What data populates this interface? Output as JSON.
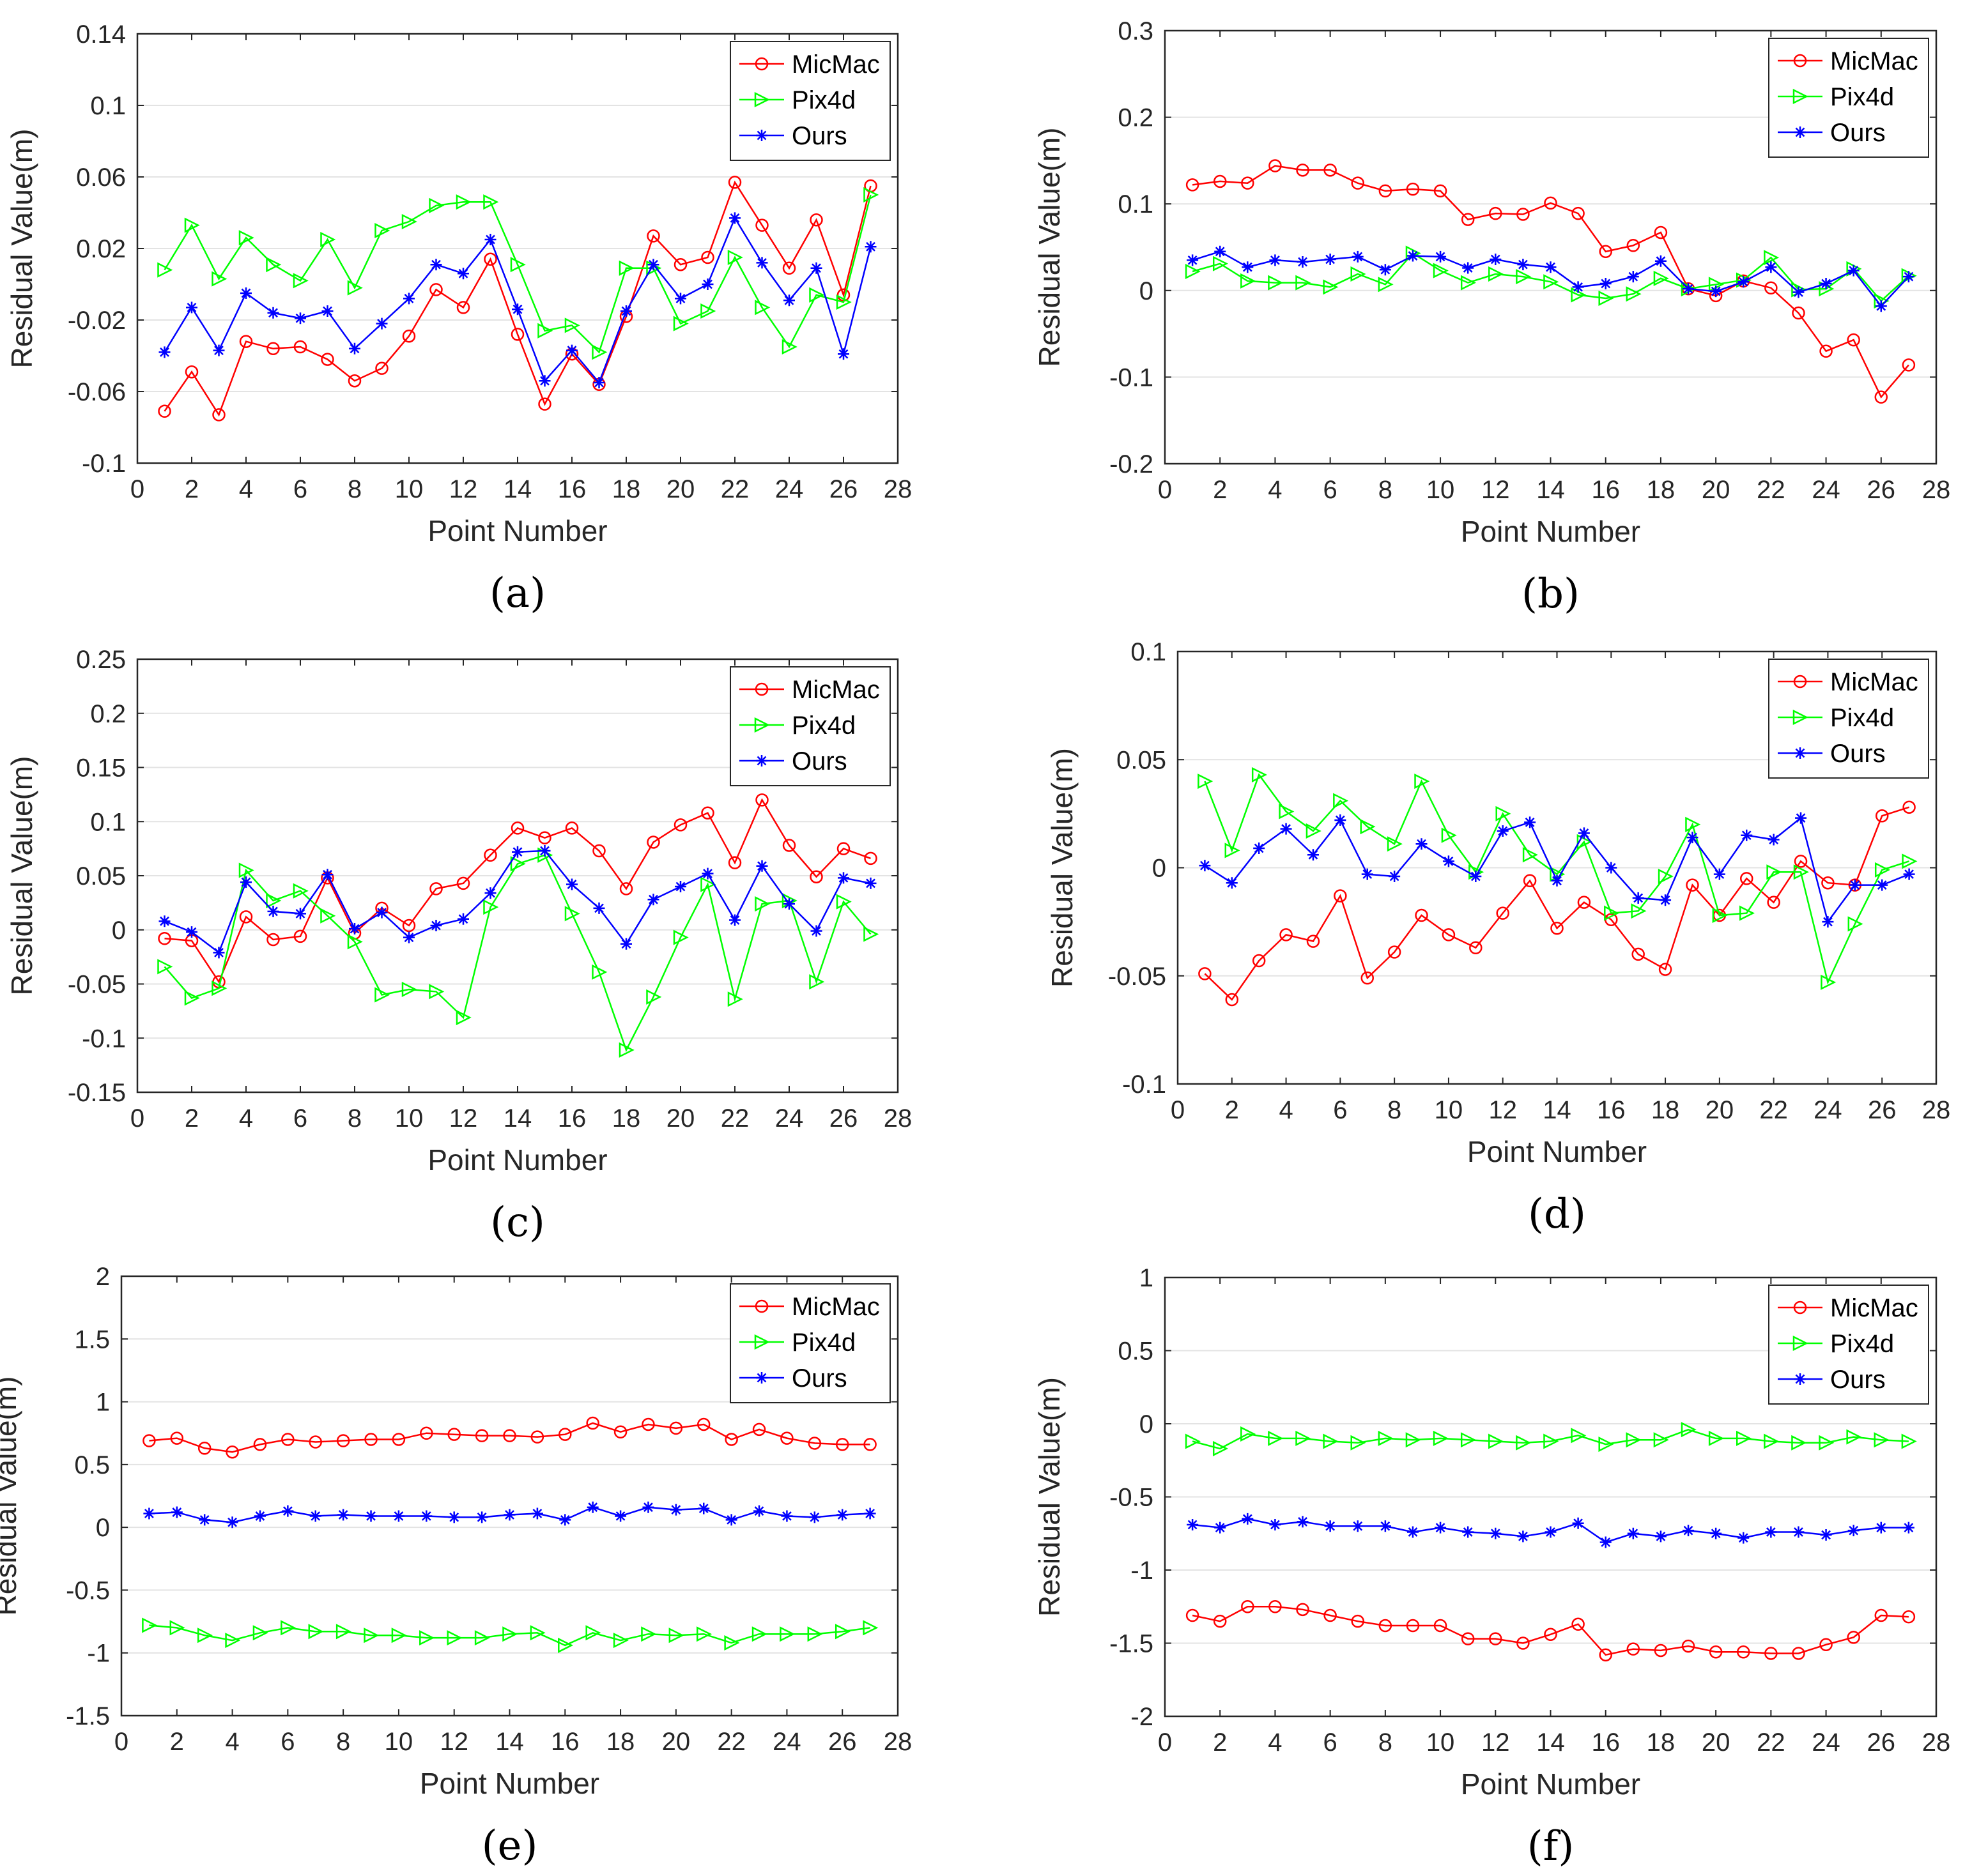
{
  "chart_data": [
    {
      "type": "line",
      "panel_label": "(a)",
      "xlabel": "Point Number",
      "ylabel": "Residual Value(m)",
      "xlim": [
        0,
        28
      ],
      "ylim": [
        -0.1,
        0.14
      ],
      "xticks": [
        0,
        2,
        4,
        6,
        8,
        10,
        12,
        14,
        16,
        18,
        20,
        22,
        24,
        26,
        28
      ],
      "yticks": [
        -0.1,
        -0.06,
        -0.02,
        0.02,
        0.06,
        0.1,
        0.14
      ],
      "ytick_labels": [
        "-0.1",
        "-0.06",
        "-0.02",
        "0.02",
        "0.06",
        "0.1",
        "0.14"
      ],
      "legend_position": "top-right",
      "x": [
        1,
        2,
        3,
        4,
        5,
        6,
        7,
        8,
        9,
        10,
        11,
        12,
        13,
        14,
        15,
        16,
        17,
        18,
        19,
        20,
        21,
        22,
        23,
        24,
        25,
        26,
        27
      ],
      "series": [
        {
          "name": "MicMac",
          "color": "#ff0000",
          "marker": "circle",
          "values": [
            -0.071,
            -0.049,
            -0.073,
            -0.032,
            -0.036,
            -0.035,
            -0.042,
            -0.054,
            -0.047,
            -0.029,
            -0.003,
            -0.013,
            0.014,
            -0.028,
            -0.067,
            -0.039,
            -0.056,
            -0.018,
            0.027,
            0.011,
            0.015,
            0.057,
            0.033,
            0.009,
            0.036,
            -0.006,
            0.055
          ]
        },
        {
          "name": "Pix4d",
          "color": "#00ff00",
          "marker": "triangle-right",
          "values": [
            0.008,
            0.033,
            0.003,
            0.026,
            0.011,
            0.002,
            0.025,
            -0.002,
            0.03,
            0.035,
            0.044,
            0.046,
            0.046,
            0.011,
            -0.026,
            -0.023,
            -0.038,
            0.009,
            0.009,
            -0.022,
            -0.015,
            0.015,
            -0.013,
            -0.035,
            -0.006,
            -0.01,
            0.05
          ]
        },
        {
          "name": "Ours",
          "color": "#0000ff",
          "marker": "asterisk",
          "values": [
            -0.038,
            -0.013,
            -0.037,
            -0.005,
            -0.016,
            -0.019,
            -0.015,
            -0.036,
            -0.022,
            -0.008,
            0.011,
            0.006,
            0.025,
            -0.014,
            -0.054,
            -0.037,
            -0.055,
            -0.015,
            0.011,
            -0.008,
            0.0,
            0.037,
            0.012,
            -0.009,
            0.009,
            -0.039,
            0.021
          ]
        }
      ]
    },
    {
      "type": "line",
      "panel_label": "(b)",
      "xlabel": "Point Number",
      "ylabel": "Residual Value(m)",
      "xlim": [
        0,
        28
      ],
      "ylim": [
        -0.2,
        0.3
      ],
      "xticks": [
        0,
        2,
        4,
        6,
        8,
        10,
        12,
        14,
        16,
        18,
        20,
        22,
        24,
        26,
        28
      ],
      "yticks": [
        -0.2,
        -0.1,
        0,
        0.1,
        0.2,
        0.3
      ],
      "ytick_labels": [
        "-0.2",
        "-0.1",
        "0",
        "0.1",
        "0.2",
        "0.3"
      ],
      "legend_position": "top-right",
      "x": [
        1,
        2,
        3,
        4,
        5,
        6,
        7,
        8,
        9,
        10,
        11,
        12,
        13,
        14,
        15,
        16,
        17,
        18,
        19,
        20,
        21,
        22,
        23,
        24,
        25,
        26,
        27
      ],
      "series": [
        {
          "name": "MicMac",
          "color": "#ff0000",
          "marker": "circle",
          "values": [
            0.122,
            0.126,
            0.124,
            0.144,
            0.139,
            0.139,
            0.124,
            0.115,
            0.117,
            0.115,
            0.082,
            0.089,
            0.088,
            0.101,
            0.089,
            0.045,
            0.052,
            0.067,
            0.002,
            -0.006,
            0.011,
            0.003,
            -0.026,
            -0.07,
            -0.057,
            -0.123,
            -0.086
          ]
        },
        {
          "name": "Pix4d",
          "color": "#00ff00",
          "marker": "triangle-right",
          "values": [
            0.022,
            0.031,
            0.011,
            0.009,
            0.009,
            0.004,
            0.019,
            0.007,
            0.043,
            0.023,
            0.009,
            0.019,
            0.016,
            0.01,
            -0.005,
            -0.009,
            -0.004,
            0.014,
            0.002,
            0.007,
            0.012,
            0.038,
            0.001,
            0.002,
            0.025,
            -0.012,
            0.017
          ]
        },
        {
          "name": "Ours",
          "color": "#0000ff",
          "marker": "asterisk",
          "values": [
            0.035,
            0.045,
            0.027,
            0.035,
            0.033,
            0.036,
            0.039,
            0.024,
            0.04,
            0.039,
            0.026,
            0.036,
            0.03,
            0.027,
            0.004,
            0.008,
            0.016,
            0.034,
            0.002,
            -0.001,
            0.01,
            0.027,
            -0.002,
            0.008,
            0.023,
            -0.018,
            0.016
          ]
        }
      ]
    },
    {
      "type": "line",
      "panel_label": "(c)",
      "xlabel": "Point Number",
      "ylabel": "Residual Value(m)",
      "xlim": [
        0,
        28
      ],
      "ylim": [
        -0.15,
        0.25
      ],
      "xticks": [
        0,
        2,
        4,
        6,
        8,
        10,
        12,
        14,
        16,
        18,
        20,
        22,
        24,
        26,
        28
      ],
      "yticks": [
        -0.15,
        -0.1,
        -0.05,
        0,
        0.05,
        0.1,
        0.15,
        0.2,
        0.25
      ],
      "ytick_labels": [
        "-0.15",
        "-0.1",
        "-0.05",
        "0",
        "0.05",
        "0.1",
        "0.15",
        "0.2",
        "0.25"
      ],
      "legend_position": "top-right",
      "x": [
        1,
        2,
        3,
        4,
        5,
        6,
        7,
        8,
        9,
        10,
        11,
        12,
        13,
        14,
        15,
        16,
        17,
        18,
        19,
        20,
        21,
        22,
        23,
        24,
        25,
        26,
        27
      ],
      "series": [
        {
          "name": "MicMac",
          "color": "#ff0000",
          "marker": "circle",
          "values": [
            -0.008,
            -0.01,
            -0.048,
            0.012,
            -0.009,
            -0.006,
            0.048,
            -0.003,
            0.02,
            0.004,
            0.038,
            0.043,
            0.069,
            0.094,
            0.085,
            0.094,
            0.073,
            0.038,
            0.081,
            0.097,
            0.108,
            0.062,
            0.12,
            0.078,
            0.049,
            0.075,
            0.066
          ]
        },
        {
          "name": "Pix4d",
          "color": "#00ff00",
          "marker": "triangle-right",
          "values": [
            -0.034,
            -0.063,
            -0.054,
            0.055,
            0.027,
            0.036,
            0.013,
            -0.011,
            -0.06,
            -0.055,
            -0.057,
            -0.081,
            0.021,
            0.061,
            0.069,
            0.015,
            -0.039,
            -0.111,
            -0.062,
            -0.007,
            0.042,
            -0.064,
            0.024,
            0.027,
            -0.048,
            0.026,
            -0.004
          ]
        },
        {
          "name": "Ours",
          "color": "#0000ff",
          "marker": "asterisk",
          "values": [
            0.008,
            -0.002,
            -0.021,
            0.044,
            0.017,
            0.015,
            0.051,
            0.001,
            0.016,
            -0.007,
            0.004,
            0.01,
            0.034,
            0.072,
            0.073,
            0.042,
            0.02,
            -0.013,
            0.028,
            0.04,
            0.052,
            0.009,
            0.059,
            0.024,
            -0.001,
            0.048,
            0.043
          ]
        }
      ]
    },
    {
      "type": "line",
      "panel_label": "(d)",
      "xlabel": "Point Number",
      "ylabel": "Residual Value(m)",
      "xlim": [
        0,
        28
      ],
      "ylim": [
        -0.1,
        0.1
      ],
      "xticks": [
        0,
        2,
        4,
        6,
        8,
        10,
        12,
        14,
        16,
        18,
        20,
        22,
        24,
        26,
        28
      ],
      "yticks": [
        -0.1,
        -0.05,
        0,
        0.05,
        0.1
      ],
      "ytick_labels": [
        "-0.1",
        "-0.05",
        "0",
        "0.05",
        "0.1"
      ],
      "legend_position": "top-right",
      "x": [
        1,
        2,
        3,
        4,
        5,
        6,
        7,
        8,
        9,
        10,
        11,
        12,
        13,
        14,
        15,
        16,
        17,
        18,
        19,
        20,
        21,
        22,
        23,
        24,
        25,
        26,
        27
      ],
      "series": [
        {
          "name": "MicMac",
          "color": "#ff0000",
          "marker": "circle",
          "values": [
            -0.049,
            -0.061,
            -0.043,
            -0.031,
            -0.034,
            -0.013,
            -0.051,
            -0.039,
            -0.022,
            -0.031,
            -0.037,
            -0.021,
            -0.006,
            -0.028,
            -0.016,
            -0.024,
            -0.04,
            -0.047,
            -0.008,
            -0.022,
            -0.005,
            -0.016,
            0.003,
            -0.007,
            -0.008,
            0.024,
            0.028
          ]
        },
        {
          "name": "Pix4d",
          "color": "#00ff00",
          "marker": "triangle-right",
          "values": [
            0.04,
            0.008,
            0.043,
            0.026,
            0.017,
            0.031,
            0.019,
            0.011,
            0.04,
            0.015,
            -0.002,
            0.025,
            0.006,
            -0.003,
            0.012,
            -0.021,
            -0.02,
            -0.004,
            0.02,
            -0.022,
            -0.021,
            -0.002,
            -0.002,
            -0.053,
            -0.026,
            -0.001,
            0.003
          ]
        },
        {
          "name": "Ours",
          "color": "#0000ff",
          "marker": "asterisk",
          "values": [
            0.001,
            -0.007,
            0.009,
            0.018,
            0.006,
            0.022,
            -0.003,
            -0.004,
            0.011,
            0.003,
            -0.004,
            0.017,
            0.021,
            -0.006,
            0.016,
            0.0,
            -0.014,
            -0.015,
            0.014,
            -0.003,
            0.015,
            0.013,
            0.023,
            -0.025,
            -0.008,
            -0.008,
            -0.003
          ]
        }
      ]
    },
    {
      "type": "line",
      "panel_label": "(e)",
      "xlabel": "Point Number",
      "ylabel": "Residual Value(m)",
      "xlim": [
        0,
        28
      ],
      "ylim": [
        -1.5,
        2
      ],
      "xticks": [
        0,
        2,
        4,
        6,
        8,
        10,
        12,
        14,
        16,
        18,
        20,
        22,
        24,
        26,
        28
      ],
      "yticks": [
        -1.5,
        -1,
        -0.5,
        0,
        0.5,
        1,
        1.5,
        2
      ],
      "ytick_labels": [
        "-1.5",
        "-1",
        "-0.5",
        "0",
        "0.5",
        "1",
        "1.5",
        "2"
      ],
      "legend_position": "top-right",
      "x": [
        1,
        2,
        3,
        4,
        5,
        6,
        7,
        8,
        9,
        10,
        11,
        12,
        13,
        14,
        15,
        16,
        17,
        18,
        19,
        20,
        21,
        22,
        23,
        24,
        25,
        26,
        27
      ],
      "series": [
        {
          "name": "MicMac",
          "color": "#ff0000",
          "marker": "circle",
          "values": [
            0.69,
            0.71,
            0.63,
            0.6,
            0.66,
            0.7,
            0.68,
            0.69,
            0.7,
            0.7,
            0.75,
            0.74,
            0.73,
            0.73,
            0.72,
            0.74,
            0.83,
            0.76,
            0.82,
            0.79,
            0.82,
            0.7,
            0.78,
            0.71,
            0.67,
            0.66,
            0.66
          ]
        },
        {
          "name": "Pix4d",
          "color": "#00ff00",
          "marker": "triangle-right",
          "values": [
            -0.78,
            -0.8,
            -0.86,
            -0.9,
            -0.84,
            -0.8,
            -0.83,
            -0.83,
            -0.86,
            -0.86,
            -0.88,
            -0.88,
            -0.88,
            -0.85,
            -0.84,
            -0.94,
            -0.84,
            -0.9,
            -0.85,
            -0.86,
            -0.85,
            -0.92,
            -0.85,
            -0.85,
            -0.85,
            -0.83,
            -0.8
          ]
        },
        {
          "name": "Ours",
          "color": "#0000ff",
          "marker": "asterisk",
          "values": [
            0.11,
            0.12,
            0.06,
            0.04,
            0.09,
            0.13,
            0.09,
            0.1,
            0.09,
            0.09,
            0.09,
            0.08,
            0.08,
            0.1,
            0.11,
            0.06,
            0.16,
            0.09,
            0.16,
            0.14,
            0.15,
            0.06,
            0.13,
            0.09,
            0.08,
            0.1,
            0.11
          ]
        }
      ]
    },
    {
      "type": "line",
      "panel_label": "(f)",
      "xlabel": "Point Number",
      "ylabel": "Residual Value(m)",
      "xlim": [
        0,
        28
      ],
      "ylim": [
        -2,
        1
      ],
      "xticks": [
        0,
        2,
        4,
        6,
        8,
        10,
        12,
        14,
        16,
        18,
        20,
        22,
        24,
        26,
        28
      ],
      "yticks": [
        -2,
        -1.5,
        -1,
        -0.5,
        0,
        0.5,
        1
      ],
      "ytick_labels": [
        "-2",
        "-1.5",
        "-1",
        "-0.5",
        "0",
        "0.5",
        "1"
      ],
      "legend_position": "top-right",
      "x": [
        1,
        2,
        3,
        4,
        5,
        6,
        7,
        8,
        9,
        10,
        11,
        12,
        13,
        14,
        15,
        16,
        17,
        18,
        19,
        20,
        21,
        22,
        23,
        24,
        25,
        26,
        27
      ],
      "series": [
        {
          "name": "MicMac",
          "color": "#ff0000",
          "marker": "circle",
          "values": [
            -1.31,
            -1.35,
            -1.25,
            -1.25,
            -1.27,
            -1.31,
            -1.35,
            -1.38,
            -1.38,
            -1.38,
            -1.47,
            -1.47,
            -1.5,
            -1.44,
            -1.37,
            -1.58,
            -1.54,
            -1.55,
            -1.52,
            -1.56,
            -1.56,
            -1.57,
            -1.57,
            -1.51,
            -1.46,
            -1.31,
            -1.32
          ]
        },
        {
          "name": "Pix4d",
          "color": "#00ff00",
          "marker": "triangle-right",
          "values": [
            -0.12,
            -0.17,
            -0.07,
            -0.1,
            -0.1,
            -0.12,
            -0.13,
            -0.1,
            -0.11,
            -0.1,
            -0.11,
            -0.12,
            -0.13,
            -0.12,
            -0.08,
            -0.14,
            -0.11,
            -0.11,
            -0.04,
            -0.1,
            -0.1,
            -0.12,
            -0.13,
            -0.13,
            -0.09,
            -0.11,
            -0.12
          ]
        },
        {
          "name": "Ours",
          "color": "#0000ff",
          "marker": "asterisk",
          "values": [
            -0.69,
            -0.71,
            -0.65,
            -0.69,
            -0.67,
            -0.7,
            -0.7,
            -0.7,
            -0.74,
            -0.71,
            -0.74,
            -0.75,
            -0.77,
            -0.74,
            -0.68,
            -0.81,
            -0.75,
            -0.77,
            -0.73,
            -0.75,
            -0.78,
            -0.74,
            -0.74,
            -0.76,
            -0.73,
            -0.71,
            -0.71
          ]
        }
      ]
    }
  ]
}
